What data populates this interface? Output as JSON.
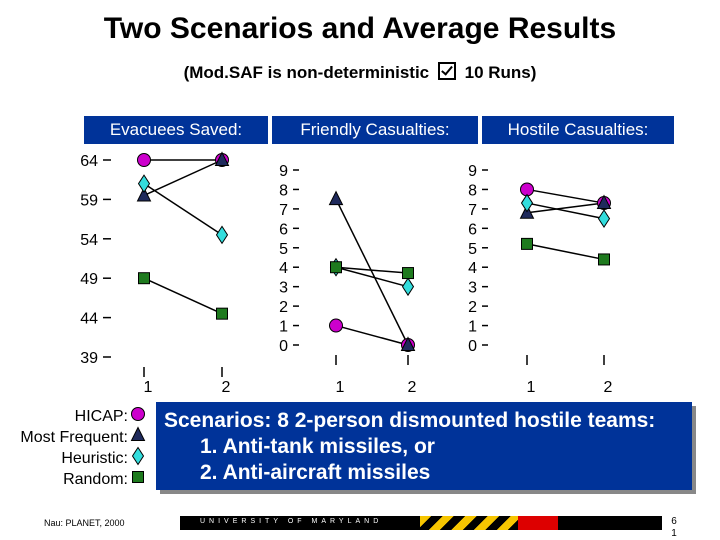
{
  "title": "Two Scenarios and Average Results",
  "subtitle_left": "(Mod.SAF is non-deterministic",
  "subtitle_right": "10 Runs)",
  "headers": [
    "Evacuees Saved:",
    "Friendly Casualties:",
    "Hostile Casualties:"
  ],
  "legend": [
    {
      "label": "HICAP:",
      "marker": "circle",
      "color": "#cc00cc"
    },
    {
      "label": "Most Frequent:",
      "marker": "triangle",
      "color": "#1f2a5c"
    },
    {
      "label": "Heuristic:",
      "marker": "diamond",
      "color": "#33dddd"
    },
    {
      "label": "Random:",
      "marker": "square",
      "color": "#1e7a1e"
    }
  ],
  "scenario_text": {
    "line1": "Scenarios: 8 2-person dismounted hostile teams:",
    "line2": "1. Anti-tank missiles, or",
    "line3": "2. Anti-aircraft missiles"
  },
  "footer_left": "Nau: PLANET, 2000",
  "footer_bar_text": "UNIVERSITY OF MARYLAND",
  "page_number_top": "6",
  "page_number_bottom": "1",
  "chart_data": [
    {
      "type": "line",
      "title": "Evacuees Saved:",
      "x": [
        "1",
        "2"
      ],
      "y_ticks": [
        "64",
        "59",
        "54",
        "49",
        "44",
        "39"
      ],
      "ylim": [
        39,
        64
      ],
      "series": [
        {
          "name": "HICAP",
          "values": [
            64,
            64
          ]
        },
        {
          "name": "Most Frequent",
          "values": [
            59.5,
            64
          ]
        },
        {
          "name": "Heuristic",
          "values": [
            61,
            54.5
          ]
        },
        {
          "name": "Random",
          "values": [
            49,
            44.5
          ]
        }
      ]
    },
    {
      "type": "line",
      "title": "Friendly Casualties:",
      "x": [
        "1",
        "2"
      ],
      "y_ticks": [
        "9",
        "8",
        "7",
        "6",
        "5",
        "4",
        "3",
        "2",
        "1",
        "0"
      ],
      "ylim": [
        0,
        9
      ],
      "series": [
        {
          "name": "HICAP",
          "values": [
            1,
            0
          ]
        },
        {
          "name": "Most Frequent",
          "values": [
            7.5,
            0
          ]
        },
        {
          "name": "Heuristic",
          "values": [
            4,
            3
          ]
        },
        {
          "name": "Random",
          "values": [
            4,
            3.7
          ]
        }
      ]
    },
    {
      "type": "line",
      "title": "Hostile Casualties:",
      "x": [
        "1",
        "2"
      ],
      "y_ticks": [
        "9",
        "8",
        "7",
        "6",
        "5",
        "4",
        "3",
        "2",
        "1",
        "0"
      ],
      "ylim": [
        0,
        9
      ],
      "series": [
        {
          "name": "HICAP",
          "values": [
            8,
            7.3
          ]
        },
        {
          "name": "Most Frequent",
          "values": [
            6.8,
            7.3
          ]
        },
        {
          "name": "Heuristic",
          "values": [
            7.3,
            6.5
          ]
        },
        {
          "name": "Random",
          "values": [
            5.2,
            4.4
          ]
        }
      ]
    }
  ]
}
